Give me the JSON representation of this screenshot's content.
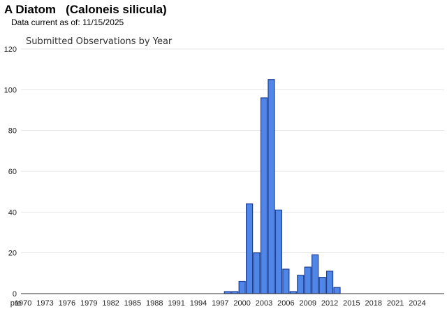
{
  "header": {
    "species_common": "A Diatom",
    "species_latin": "(Caloneis silicula)",
    "data_current_label": "Data current as of:",
    "data_current_date": "11/15/2025"
  },
  "colors": {
    "bar_fill": "#4f86e8",
    "bar_stroke": "#1b3f96",
    "gridline": "#e4e4e4",
    "axis": "#333333"
  },
  "chart_data": {
    "type": "bar",
    "title": "Submitted Observations by Year",
    "xlabel": "",
    "ylabel": "",
    "ylim": [
      0,
      120
    ],
    "yticks": [
      0,
      20,
      40,
      60,
      80,
      100,
      120
    ],
    "grid": true,
    "legend": "none",
    "categories": [
      "pre",
      "1970",
      "1971",
      "1972",
      "1973",
      "1974",
      "1975",
      "1976",
      "1977",
      "1978",
      "1979",
      "1980",
      "1981",
      "1982",
      "1983",
      "1984",
      "1985",
      "1986",
      "1987",
      "1988",
      "1989",
      "1990",
      "1991",
      "1992",
      "1993",
      "1994",
      "1995",
      "1996",
      "1997",
      "1998",
      "1999",
      "2000",
      "2001",
      "2002",
      "2003",
      "2004",
      "2005",
      "2006",
      "2007",
      "2008",
      "2009",
      "2010",
      "2011",
      "2012",
      "2013",
      "2014",
      "2015",
      "2016",
      "2017",
      "2018",
      "2019",
      "2020",
      "2021",
      "2022",
      "2023",
      "2024",
      "2025"
    ],
    "values": [
      0,
      0,
      0,
      0,
      0,
      0,
      0,
      0,
      0,
      0,
      0,
      0,
      0,
      0,
      0,
      0,
      0,
      0,
      0,
      0,
      0,
      0,
      0,
      0,
      0,
      0,
      0,
      0,
      0,
      1,
      1,
      6,
      44,
      20,
      96,
      105,
      41,
      12,
      1,
      9,
      13,
      19,
      8,
      11,
      3,
      0,
      0,
      0,
      0,
      0,
      0,
      0,
      0,
      0,
      0,
      0,
      0
    ],
    "xtick_labels": [
      "pre",
      "1970",
      "1973",
      "1976",
      "1979",
      "1982",
      "1985",
      "1988",
      "1991",
      "1994",
      "1997",
      "2000",
      "2003",
      "2006",
      "2009",
      "2012",
      "2015",
      "2018",
      "2021",
      "2024"
    ]
  }
}
